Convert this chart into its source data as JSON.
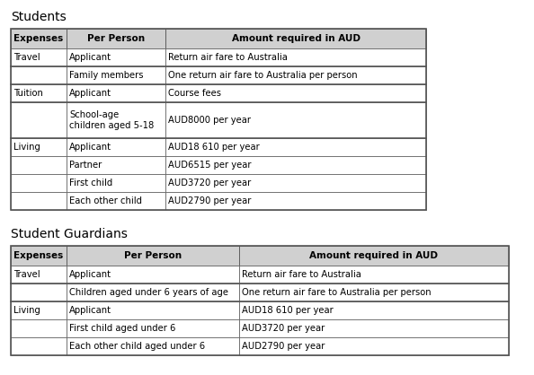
{
  "title1": "Students",
  "title2": "Student Guardians",
  "header_bg": "#d0d0d0",
  "border_color": "#555555",
  "background_color": "#ffffff",
  "title_fontsize": 10,
  "header_fontsize": 7.5,
  "cell_fontsize": 7.2,
  "table1_headers": [
    "Expenses",
    "Per Person",
    "Amount required in AUD"
  ],
  "table1_rows": [
    [
      "Travel",
      "Applicant",
      "Return air fare to Australia"
    ],
    [
      "",
      "Family members",
      "One return air fare to Australia per person"
    ],
    [
      "Tuition",
      "Applicant",
      "Course fees"
    ],
    [
      "",
      "School-age\nchildren aged 5-18",
      "AUD8000 per year"
    ],
    [
      "Living",
      "Applicant",
      "AUD18 610 per year"
    ],
    [
      "",
      "Partner",
      "AUD6515 per year"
    ],
    [
      "",
      "First child",
      "AUD3720 per year"
    ],
    [
      "",
      "Each other child",
      "AUD2790 per year"
    ]
  ],
  "table1_group_borders": [
    1,
    2,
    3,
    4
  ],
  "table2_headers": [
    "Expenses",
    "Per Person",
    "Amount required in AUD"
  ],
  "table2_rows": [
    [
      "Travel",
      "Applicant",
      "Return air fare to Australia"
    ],
    [
      "",
      "Children aged under 6 years of age",
      "One return air fare to Australia per person"
    ],
    [
      "Living",
      "Applicant",
      "AUD18 610 per year"
    ],
    [
      "",
      "First child aged under 6",
      "AUD3720 per year"
    ],
    [
      "",
      "Each other child aged under 6",
      "AUD2790 per year"
    ]
  ],
  "table2_group_borders": [
    1,
    2
  ],
  "fig_width": 5.94,
  "fig_height": 4.18,
  "fig_dpi": 100
}
